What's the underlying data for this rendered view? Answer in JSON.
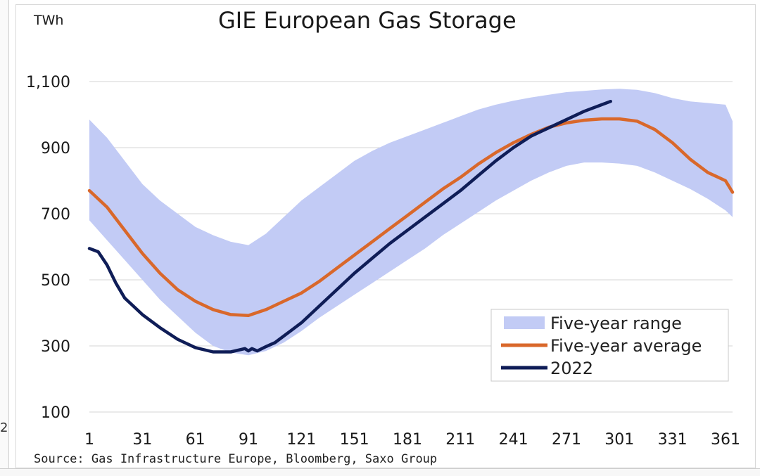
{
  "chart_data": {
    "type": "line",
    "title": "GIE European Gas Storage",
    "ylabel": "TWh",
    "xlabel": "",
    "ylim": [
      100,
      1100
    ],
    "xlim": [
      1,
      365
    ],
    "yticks": [
      {
        "value": 100,
        "label": "100"
      },
      {
        "value": 300,
        "label": "300"
      },
      {
        "value": 500,
        "label": "500"
      },
      {
        "value": 700,
        "label": "700"
      },
      {
        "value": 900,
        "label": "900"
      },
      {
        "value": 1100,
        "label": "1,100"
      }
    ],
    "xticks": [
      1,
      31,
      61,
      91,
      121,
      151,
      181,
      211,
      241,
      271,
      301,
      331,
      361
    ],
    "grid": true,
    "legend_position": "bottom-right",
    "series": [
      {
        "name": "Five-year range",
        "kind": "band",
        "color": "#c2cbf5",
        "x": [
          1,
          11,
          21,
          31,
          41,
          51,
          61,
          71,
          81,
          91,
          101,
          111,
          121,
          131,
          141,
          151,
          161,
          171,
          181,
          191,
          201,
          211,
          221,
          231,
          241,
          251,
          261,
          271,
          281,
          291,
          301,
          311,
          321,
          331,
          341,
          351,
          361,
          365
        ],
        "low": [
          680,
          620,
          560,
          500,
          440,
          390,
          340,
          300,
          280,
          272,
          285,
          310,
          345,
          385,
          420,
          455,
          490,
          525,
          560,
          595,
          635,
          670,
          705,
          740,
          770,
          800,
          825,
          845,
          855,
          855,
          852,
          845,
          825,
          800,
          775,
          745,
          710,
          690
        ],
        "high": [
          985,
          930,
          860,
          790,
          740,
          700,
          660,
          635,
          615,
          605,
          640,
          690,
          740,
          780,
          820,
          860,
          890,
          915,
          935,
          955,
          975,
          995,
          1015,
          1030,
          1042,
          1052,
          1060,
          1068,
          1072,
          1076,
          1078,
          1075,
          1065,
          1050,
          1040,
          1035,
          1030,
          980
        ]
      },
      {
        "name": "Five-year average",
        "color": "#d9682b",
        "x": [
          1,
          11,
          21,
          31,
          41,
          51,
          61,
          71,
          81,
          91,
          101,
          111,
          121,
          131,
          141,
          151,
          161,
          171,
          181,
          191,
          201,
          211,
          221,
          231,
          241,
          251,
          261,
          271,
          281,
          291,
          301,
          311,
          321,
          331,
          341,
          351,
          361,
          365
        ],
        "values": [
          770,
          720,
          650,
          580,
          520,
          470,
          435,
          410,
          395,
          392,
          410,
          435,
          460,
          495,
          535,
          575,
          615,
          655,
          695,
          735,
          775,
          810,
          850,
          885,
          915,
          940,
          962,
          975,
          983,
          987,
          987,
          980,
          955,
          915,
          865,
          825,
          800,
          765
        ]
      },
      {
        "name": "2022",
        "color": "#0f1d57",
        "x": [
          1,
          6,
          11,
          16,
          21,
          26,
          31,
          41,
          51,
          61,
          71,
          81,
          86,
          89,
          91,
          93,
          96,
          101,
          106,
          111,
          116,
          121,
          131,
          141,
          151,
          161,
          171,
          181,
          191,
          201,
          211,
          221,
          231,
          241,
          251,
          261,
          271,
          281,
          291,
          296
        ],
        "values": [
          595,
          585,
          545,
          490,
          445,
          420,
          395,
          355,
          320,
          295,
          282,
          282,
          288,
          292,
          285,
          292,
          285,
          298,
          310,
          330,
          350,
          370,
          420,
          470,
          520,
          565,
          610,
          650,
          690,
          730,
          770,
          815,
          860,
          900,
          935,
          960,
          985,
          1010,
          1030,
          1040
        ]
      }
    ]
  },
  "source": "Source: Gas Infrastructure Europe, Bloomberg, Saxo Group",
  "edge_mark": "2"
}
